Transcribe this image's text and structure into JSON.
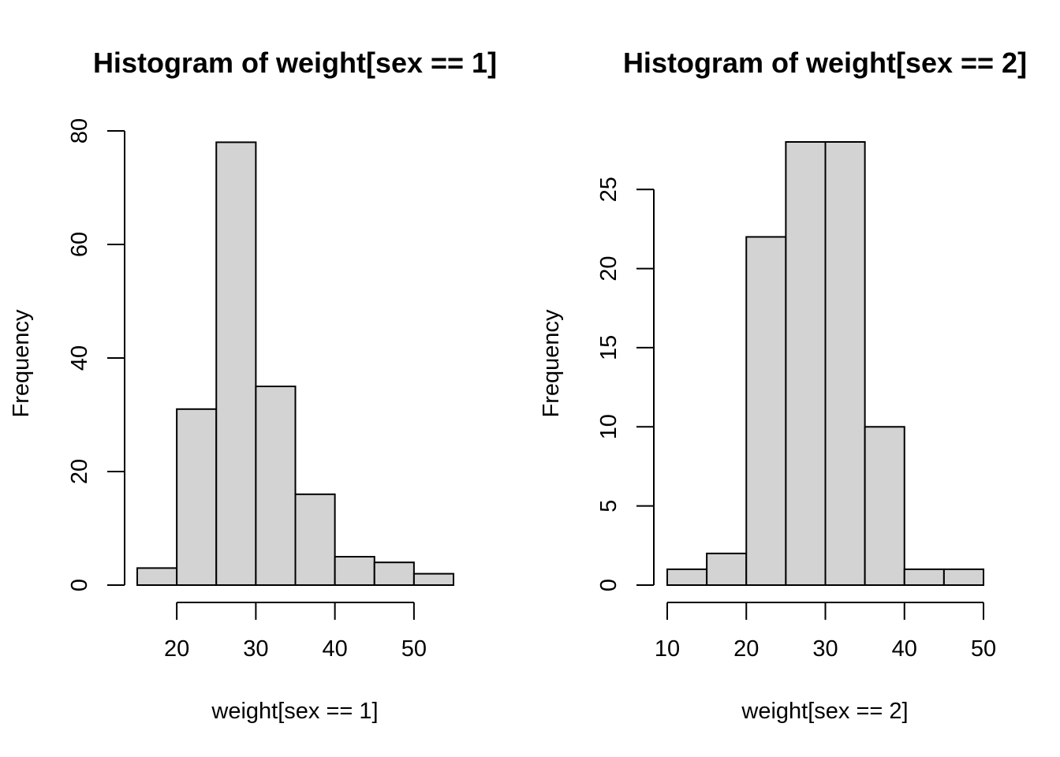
{
  "chart_data": [
    {
      "type": "bar",
      "title": "Histogram of weight[sex == 1]",
      "xlabel": "weight[sex == 1]",
      "ylabel": "Frequency",
      "bins": [
        [
          15,
          20
        ],
        [
          20,
          25
        ],
        [
          25,
          30
        ],
        [
          30,
          35
        ],
        [
          35,
          40
        ],
        [
          40,
          45
        ],
        [
          45,
          50
        ],
        [
          50,
          55
        ]
      ],
      "values": [
        3,
        31,
        78,
        35,
        16,
        5,
        4,
        2
      ],
      "xticks": [
        20,
        30,
        40,
        50
      ],
      "yticks": [
        0,
        20,
        40,
        60,
        80
      ],
      "xlim": [
        15,
        55
      ],
      "ylim": [
        0,
        80
      ],
      "bar_color": "#d3d3d3",
      "grid": false
    },
    {
      "type": "bar",
      "title": "Histogram of weight[sex == 2]",
      "xlabel": "weight[sex == 2]",
      "ylabel": "Frequency",
      "bins": [
        [
          10,
          15
        ],
        [
          15,
          20
        ],
        [
          20,
          25
        ],
        [
          25,
          30
        ],
        [
          30,
          35
        ],
        [
          35,
          40
        ],
        [
          40,
          45
        ],
        [
          45,
          50
        ]
      ],
      "values": [
        1,
        2,
        22,
        28,
        28,
        10,
        1,
        1
      ],
      "xticks": [
        10,
        20,
        30,
        40,
        50
      ],
      "yticks": [
        0,
        5,
        10,
        15,
        20,
        25
      ],
      "xlim": [
        10,
        50
      ],
      "ylim": [
        0,
        28
      ],
      "bar_color": "#d3d3d3",
      "grid": false
    }
  ]
}
